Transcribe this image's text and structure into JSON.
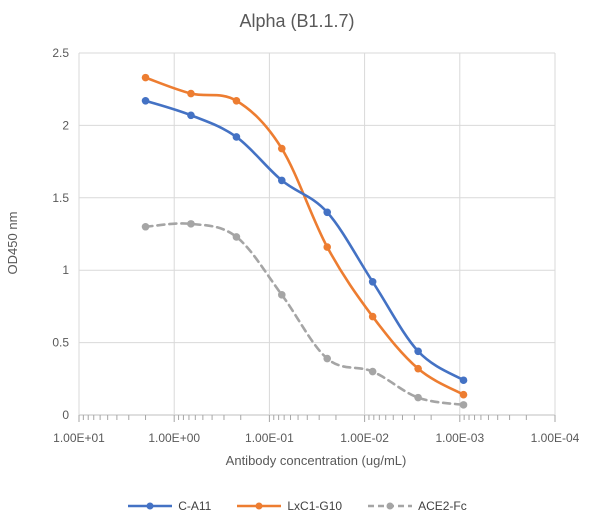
{
  "chart_data": {
    "type": "line",
    "title": "Alpha (B1.1.7)",
    "xlabel": "Antibody concentration (ug/mL)",
    "ylabel": "OD450 nm",
    "x_scale": "log",
    "x_reversed": true,
    "xlim": [
      10,
      0.0001
    ],
    "ylim": [
      0,
      2.5
    ],
    "x_ticks": [
      10,
      1,
      0.1,
      0.01,
      0.001,
      0.0001
    ],
    "x_tick_labels": [
      "1.00E+01",
      "1.00E+00",
      "1.00E-01",
      "1.00E-02",
      "1.00E-03",
      "1.00E-04"
    ],
    "y_ticks": [
      0,
      0.5,
      1,
      1.5,
      2,
      2.5
    ],
    "y_tick_labels": [
      "0",
      "0.5",
      "1",
      "1.5",
      "2",
      "2.5"
    ],
    "grid": true,
    "legend_position": "bottom",
    "x": [
      2,
      0.667,
      0.222,
      0.0741,
      0.0247,
      0.00823,
      0.00274,
      0.000914
    ],
    "series": [
      {
        "name": "C-A11",
        "color": "#4472C4",
        "dash": false,
        "values": [
          2.17,
          2.07,
          1.92,
          1.62,
          1.4,
          0.92,
          0.44,
          0.24
        ]
      },
      {
        "name": "LxC1-G10",
        "color": "#ED7D31",
        "dash": false,
        "values": [
          2.33,
          2.22,
          2.17,
          1.84,
          1.16,
          0.68,
          0.32,
          0.14
        ]
      },
      {
        "name": "ACE2-Fc",
        "color": "#A5A5A5",
        "dash": true,
        "values": [
          1.3,
          1.32,
          1.23,
          0.83,
          0.39,
          0.3,
          0.12,
          0.07
        ]
      }
    ]
  }
}
